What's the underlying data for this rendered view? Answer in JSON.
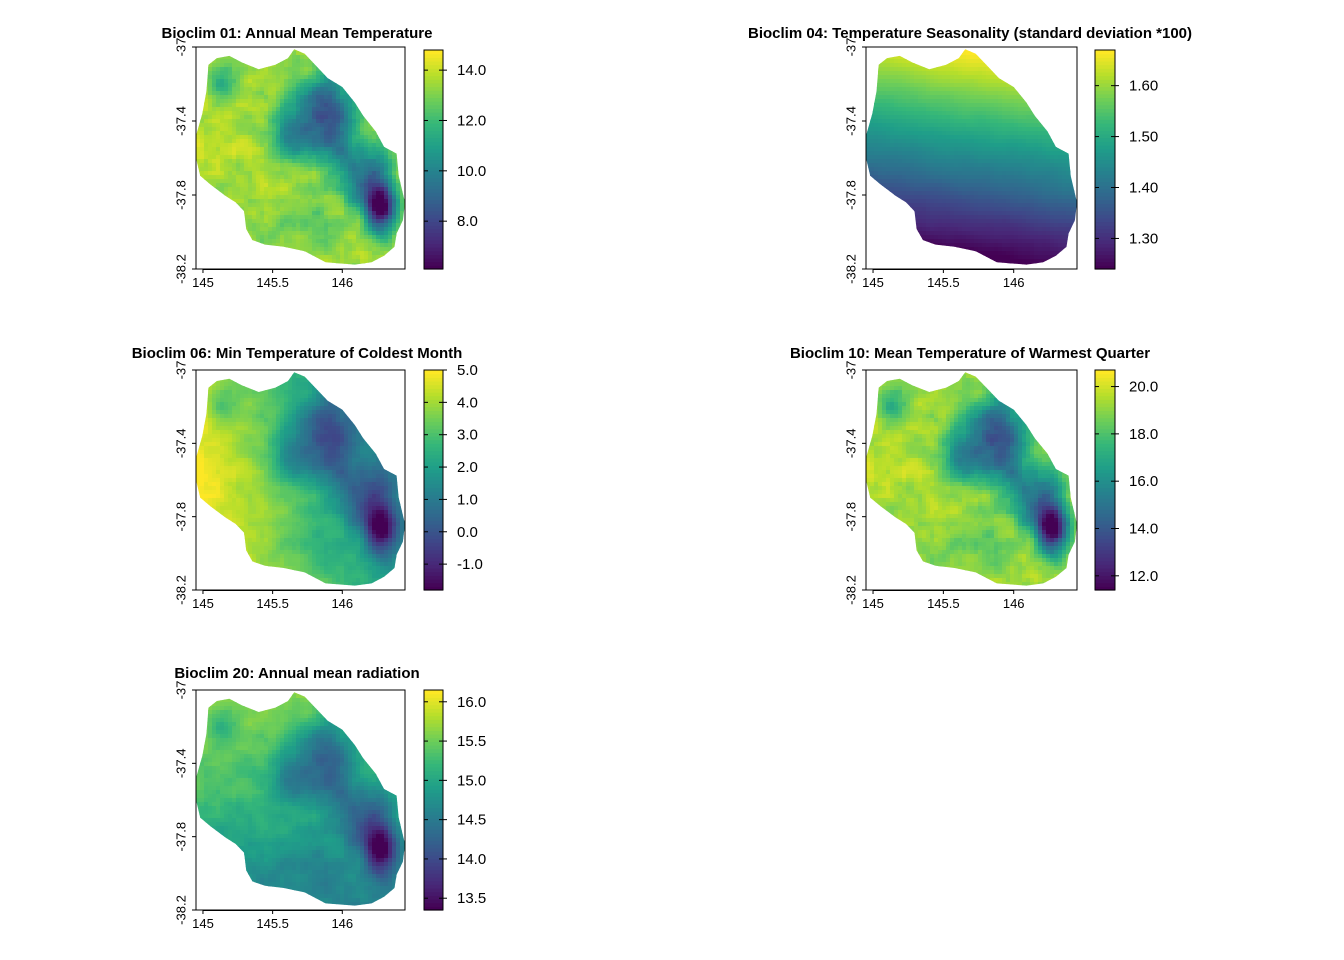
{
  "figure": {
    "colormap": "viridis",
    "colormap_stops": [
      "#440154",
      "#482878",
      "#3e4989",
      "#31688e",
      "#26828e",
      "#1f9e89",
      "#35b779",
      "#6ece58",
      "#b5de2b",
      "#fde725"
    ],
    "x_ticks": [
      "145",
      "145.5",
      "146"
    ],
    "y_ticks": [
      "-37",
      "-37.4",
      "-37.8",
      "-38.2"
    ],
    "x_range": [
      144.95,
      146.45
    ],
    "y_range": [
      -38.2,
      -37.0
    ]
  },
  "panels": [
    {
      "title": "Bioclim 01: Annual Mean Temperature",
      "colorbar": {
        "min": 6.1,
        "max": 14.8,
        "ticks": [
          "8.0",
          "10.0",
          "12.0",
          "14.0"
        ]
      },
      "pattern": "terrain"
    },
    {
      "title": "Bioclim 04: Temperature Seasonality (standard deviation *100)",
      "colorbar": {
        "min": 1.24,
        "max": 1.67,
        "ticks": [
          "1.30",
          "1.40",
          "1.50",
          "1.60"
        ]
      },
      "pattern": "gradient-north-high"
    },
    {
      "title": "Bioclim 06: Min Temperature of Coldest Month",
      "colorbar": {
        "min": -1.8,
        "max": 5.0,
        "ticks": [
          "-1.0",
          "0.0",
          "1.0",
          "2.0",
          "3.0",
          "4.0",
          "5.0"
        ]
      },
      "pattern": "west-warm"
    },
    {
      "title": "Bioclim 10: Mean Temperature of Warmest Quarter",
      "colorbar": {
        "min": 11.4,
        "max": 20.7,
        "ticks": [
          "12.0",
          "14.0",
          "16.0",
          "18.0",
          "20.0"
        ]
      },
      "pattern": "terrain"
    },
    {
      "title": "Bioclim 20: Annual mean radiation",
      "colorbar": {
        "min": 13.35,
        "max": 16.15,
        "ticks": [
          "13.5",
          "14.0",
          "14.5",
          "15.0",
          "15.5",
          "16.0"
        ]
      },
      "pattern": "radiation"
    }
  ]
}
